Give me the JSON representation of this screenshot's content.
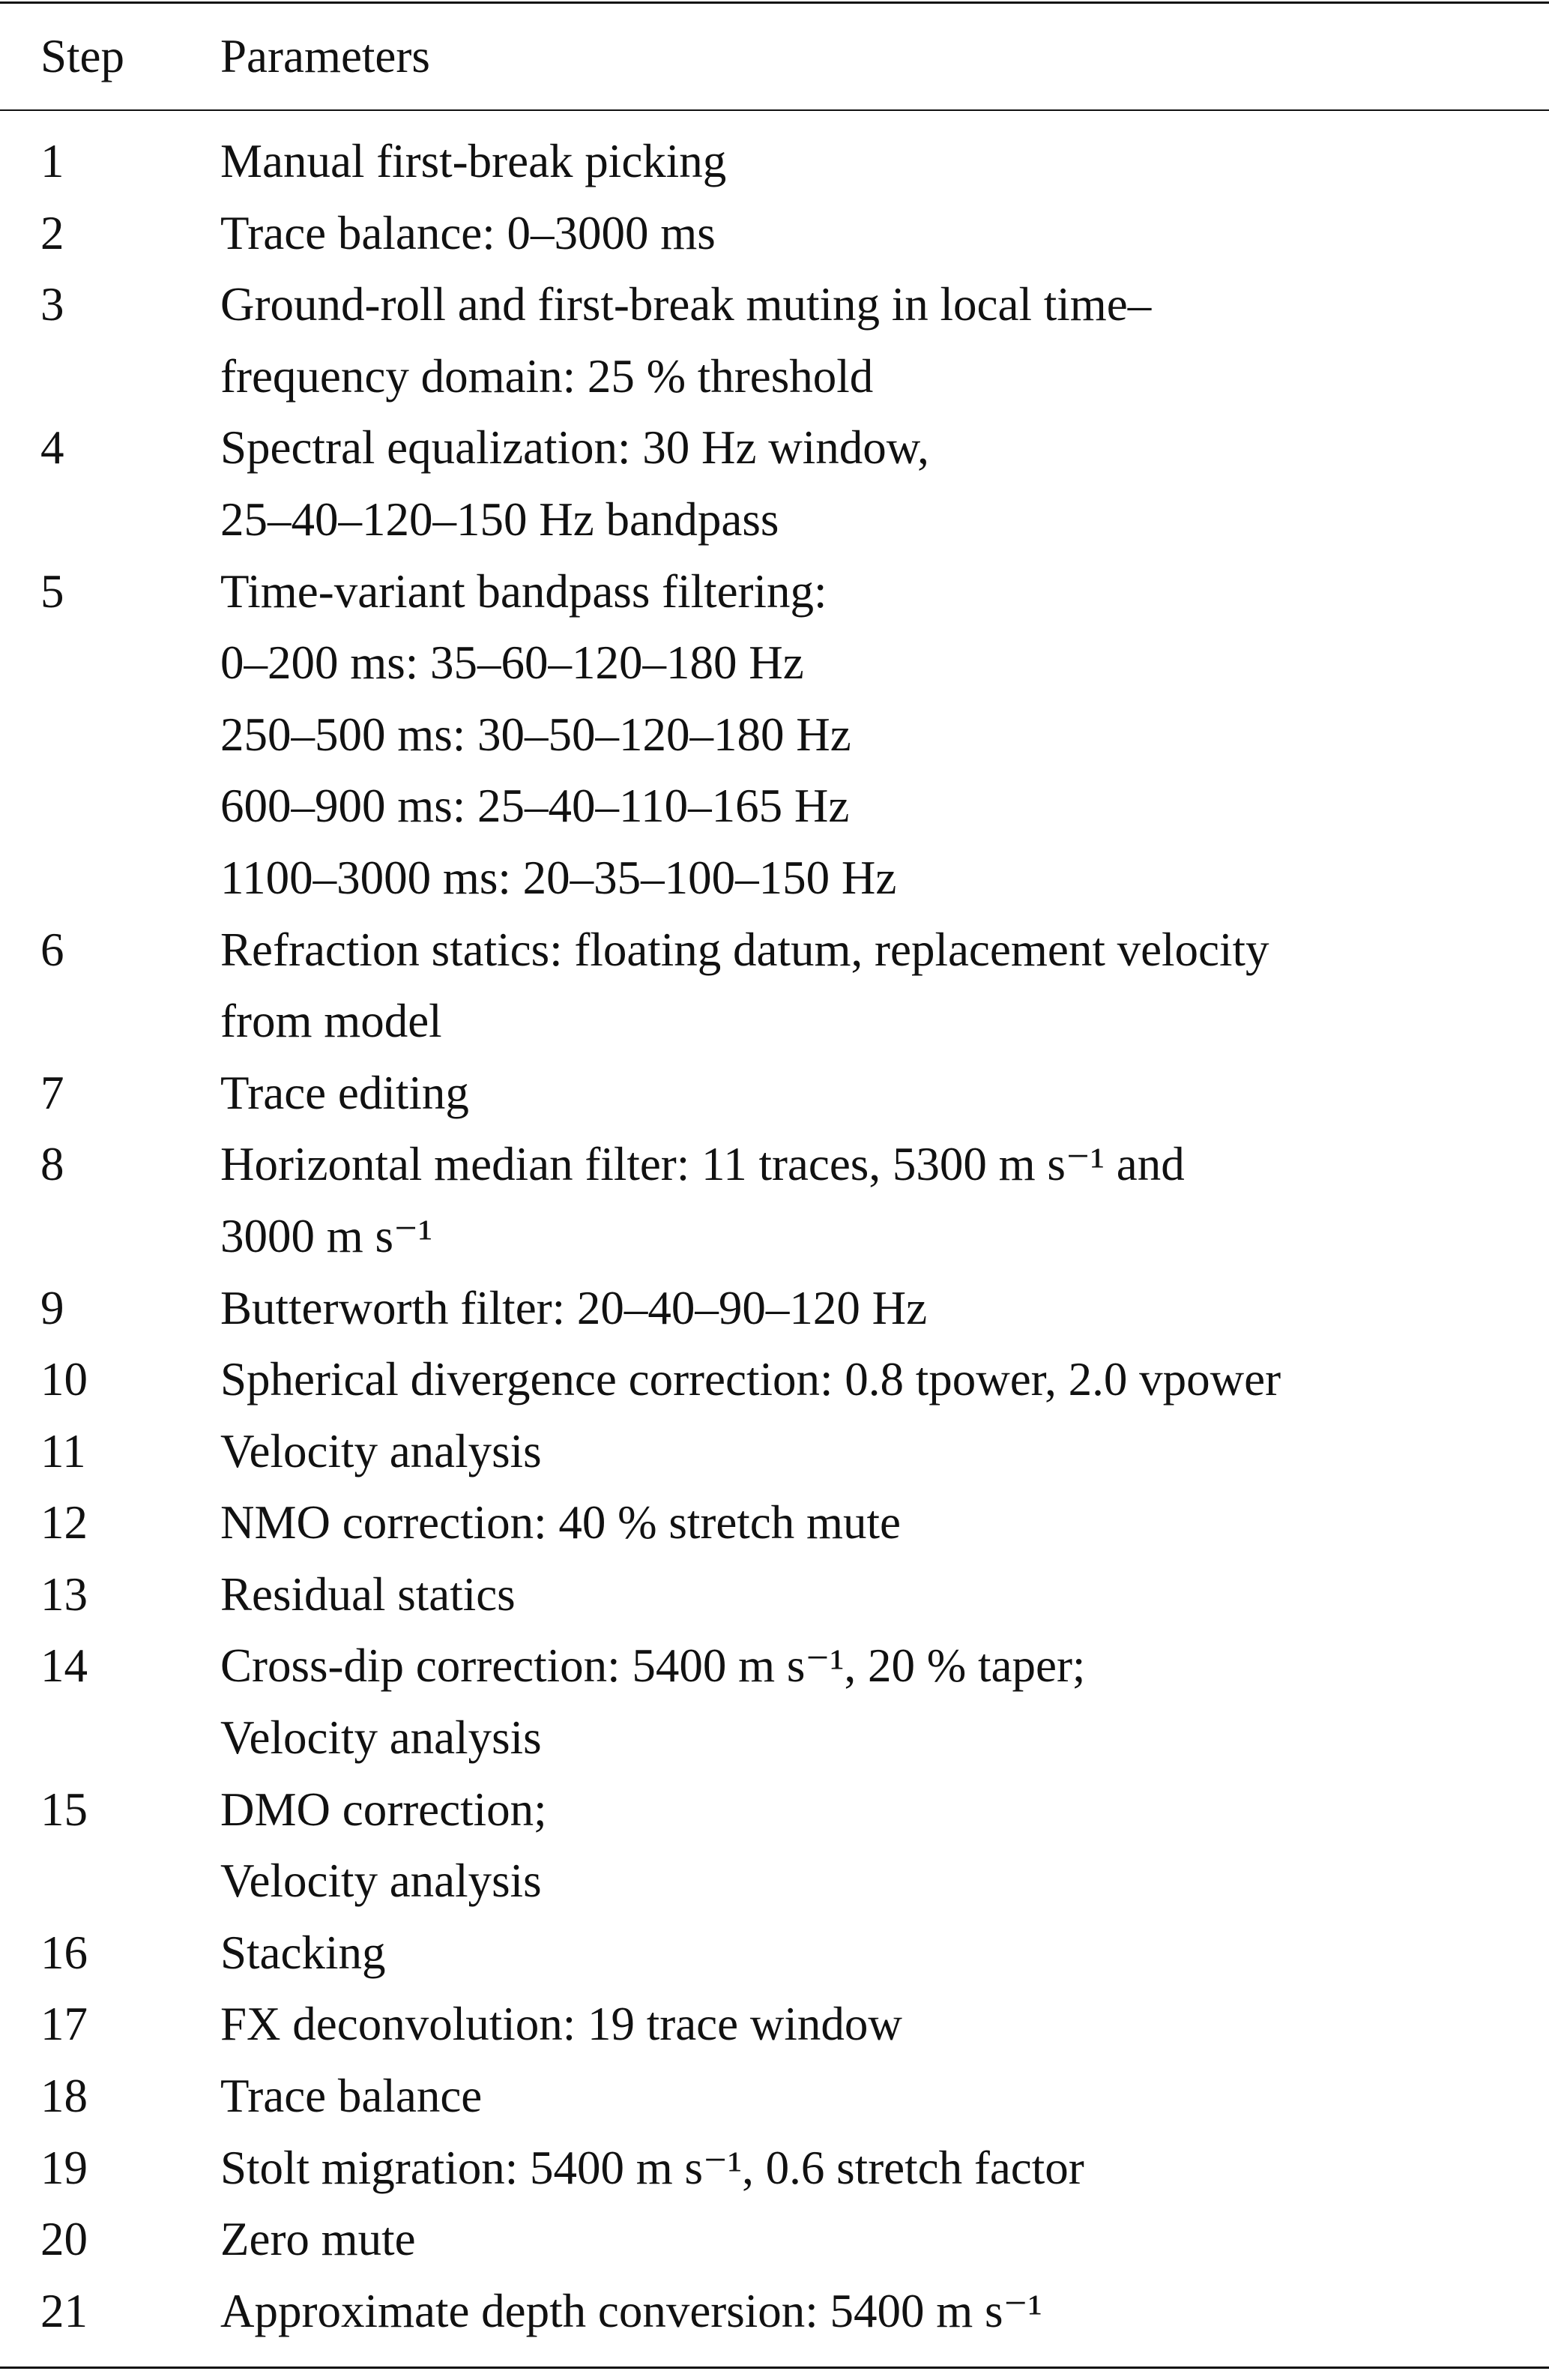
{
  "table": {
    "headers": {
      "step": "Step",
      "parameters": "Parameters"
    },
    "rows": [
      {
        "step": "1",
        "lines": [
          "Manual first-break picking"
        ]
      },
      {
        "step": "2",
        "lines": [
          "Trace balance: 0–3000 ms"
        ]
      },
      {
        "step": "3",
        "lines": [
          "Ground-roll and first-break muting in local time–",
          "frequency domain: 25 % threshold"
        ]
      },
      {
        "step": "4",
        "lines": [
          "Spectral equalization: 30 Hz window,",
          "25–40–120–150 Hz bandpass"
        ]
      },
      {
        "step": "5",
        "lines": [
          "Time-variant bandpass filtering:",
          "0–200 ms: 35–60–120–180 Hz",
          "250–500 ms: 30–50–120–180 Hz",
          "600–900 ms: 25–40–110–165 Hz",
          "1100–3000 ms: 20–35–100–150 Hz"
        ]
      },
      {
        "step": "6",
        "lines": [
          "Refraction statics: floating datum, replacement velocity",
          "from model"
        ]
      },
      {
        "step": "7",
        "lines": [
          "Trace editing"
        ]
      },
      {
        "step": "8",
        "lines": [
          "Horizontal median filter: 11 traces, 5300 m s⁻¹ and",
          "3000 m s⁻¹"
        ]
      },
      {
        "step": "9",
        "lines": [
          "Butterworth filter: 20–40–90–120 Hz"
        ]
      },
      {
        "step": "10",
        "lines": [
          "Spherical divergence correction: 0.8 tpower, 2.0 vpower"
        ]
      },
      {
        "step": "11",
        "lines": [
          "Velocity analysis"
        ]
      },
      {
        "step": "12",
        "lines": [
          "NMO correction: 40 % stretch mute"
        ]
      },
      {
        "step": "13",
        "lines": [
          "Residual statics"
        ]
      },
      {
        "step": "14",
        "lines": [
          "Cross-dip correction: 5400 m s⁻¹, 20 % taper;",
          "Velocity analysis"
        ]
      },
      {
        "step": "15",
        "lines": [
          "DMO correction;",
          "Velocity analysis"
        ]
      },
      {
        "step": "16",
        "lines": [
          "Stacking"
        ]
      },
      {
        "step": "17",
        "lines": [
          "FX deconvolution: 19 trace window"
        ]
      },
      {
        "step": "18",
        "lines": [
          "Trace balance"
        ]
      },
      {
        "step": "19",
        "lines": [
          "Stolt migration: 5400 m s⁻¹, 0.6 stretch factor"
        ]
      },
      {
        "step": "20",
        "lines": [
          "Zero mute"
        ]
      },
      {
        "step": "21",
        "lines": [
          "Approximate depth conversion: 5400 m s⁻¹"
        ]
      }
    ]
  }
}
